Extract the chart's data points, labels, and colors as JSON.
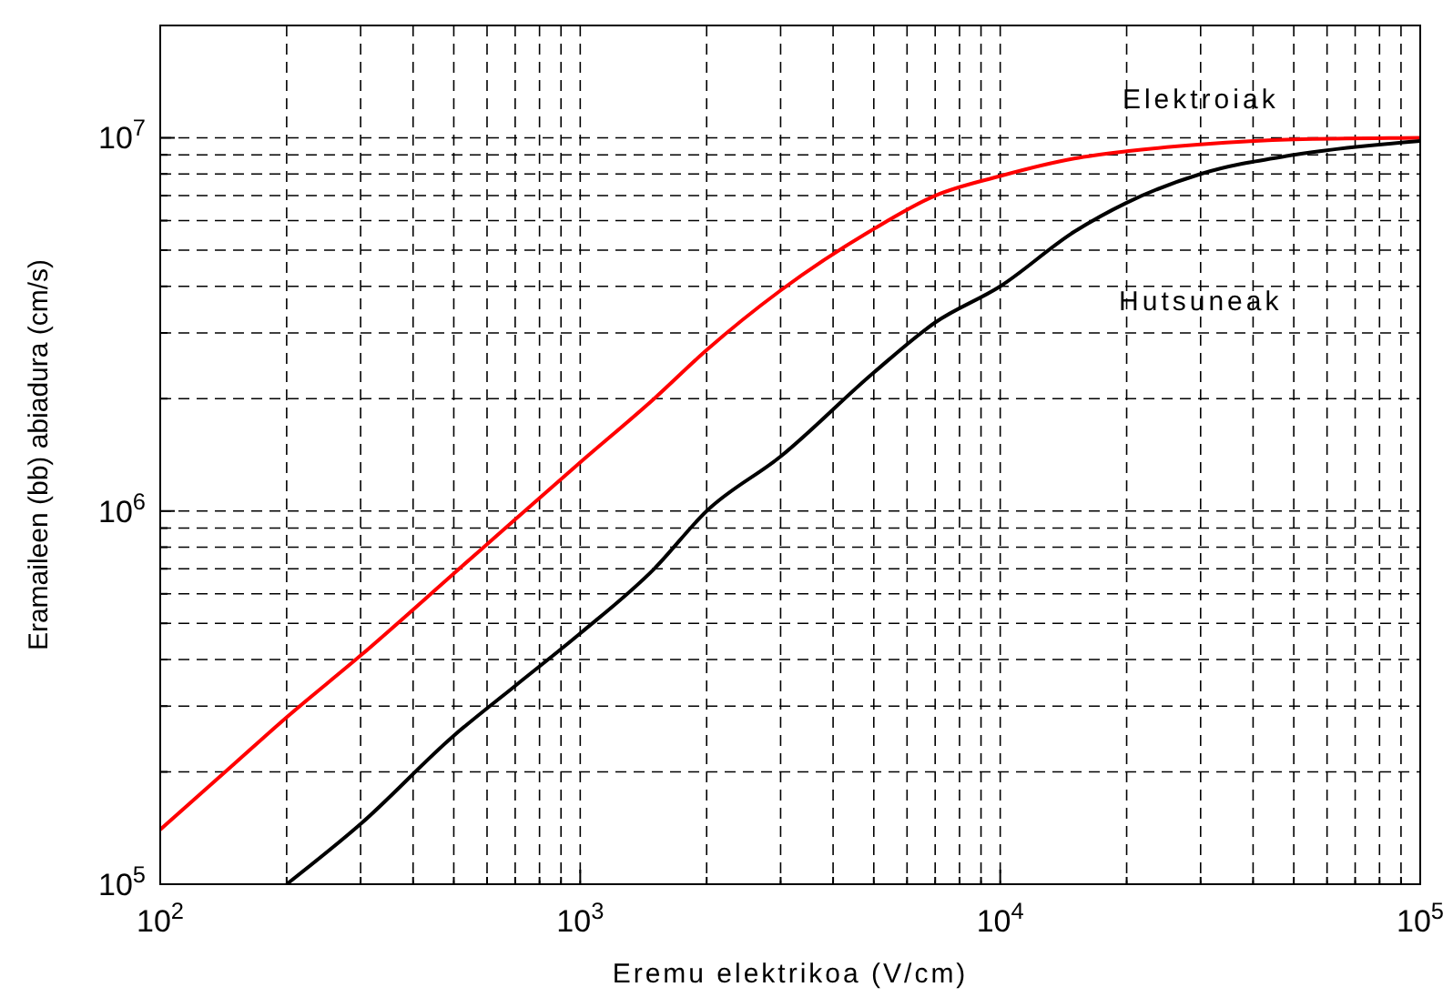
{
  "chart_data": {
    "type": "line",
    "xlabel": "Eremu elektrikoa (V/cm)",
    "ylabel": "Eramaileen (bb) abiadura (cm/s)",
    "log": "xy",
    "grid": true,
    "marker": "none",
    "xlim": [
      100,
      100000
    ],
    "ylim": [
      100000,
      20000000
    ],
    "xticks": [
      {
        "value": 100,
        "label": "10$^{2}$"
      },
      {
        "value": 200,
        "label": null
      },
      {
        "value": 300,
        "label": null
      },
      {
        "value": 400,
        "label": null
      },
      {
        "value": 500,
        "label": null
      },
      {
        "value": 600,
        "label": null
      },
      {
        "value": 700,
        "label": null
      },
      {
        "value": 800,
        "label": null
      },
      {
        "value": 900,
        "label": null
      },
      {
        "value": 1000,
        "label": "10$^{3}$"
      },
      {
        "value": 2000,
        "label": null
      },
      {
        "value": 3000,
        "label": null
      },
      {
        "value": 4000,
        "label": null
      },
      {
        "value": 5000,
        "label": null
      },
      {
        "value": 6000,
        "label": null
      },
      {
        "value": 7000,
        "label": null
      },
      {
        "value": 8000,
        "label": null
      },
      {
        "value": 9000,
        "label": null
      },
      {
        "value": 10000,
        "label": "10$^{4}$"
      },
      {
        "value": 20000,
        "label": null
      },
      {
        "value": 30000,
        "label": null
      },
      {
        "value": 40000,
        "label": null
      },
      {
        "value": 50000,
        "label": null
      },
      {
        "value": 60000,
        "label": null
      },
      {
        "value": 70000,
        "label": null
      },
      {
        "value": 80000,
        "label": null
      },
      {
        "value": 90000,
        "label": null
      },
      {
        "value": 100000,
        "label": "10$^{5}$"
      }
    ],
    "yticks": [
      {
        "value": 100000,
        "label": "10$^{5}$"
      },
      {
        "value": 200000,
        "label": null
      },
      {
        "value": 300000,
        "label": null
      },
      {
        "value": 400000,
        "label": null
      },
      {
        "value": 500000,
        "label": null
      },
      {
        "value": 600000,
        "label": null
      },
      {
        "value": 700000,
        "label": null
      },
      {
        "value": 800000,
        "label": null
      },
      {
        "value": 900000,
        "label": null
      },
      {
        "value": 1000000,
        "label": "10$^{6}$"
      },
      {
        "value": 2000000,
        "label": null
      },
      {
        "value": 3000000,
        "label": null
      },
      {
        "value": 4000000,
        "label": null
      },
      {
        "value": 5000000,
        "label": null
      },
      {
        "value": 6000000,
        "label": null
      },
      {
        "value": 7000000,
        "label": null
      },
      {
        "value": 8000000,
        "label": null
      },
      {
        "value": 9000000,
        "label": null
      },
      {
        "value": 10000000,
        "label": "10$^{7}$"
      }
    ],
    "series": [
      {
        "name": "Elektroiak",
        "color": "#ff0000",
        "x": [
          100,
          150,
          200,
          300,
          500,
          700,
          1000,
          1500,
          2000,
          3000,
          5000,
          7000,
          10000,
          15000,
          20000,
          30000,
          50000,
          100000
        ],
        "values": [
          140000,
          210000,
          280000,
          410000,
          680000,
          950000,
          1350000,
          2000000,
          2700000,
          3900000,
          5700000,
          7000000,
          7900000,
          8800000,
          9200000,
          9600000,
          9900000,
          10000000
        ]
      },
      {
        "name": "Hutsuneak",
        "color": "#000000",
        "x": [
          200,
          300,
          500,
          700,
          1000,
          1500,
          2000,
          3000,
          5000,
          7000,
          10000,
          15000,
          20000,
          30000,
          50000,
          100000
        ],
        "values": [
          100000,
          145000,
          250000,
          340000,
          470000,
          700000,
          1000000,
          1400000,
          2350000,
          3200000,
          4000000,
          5600000,
          6700000,
          8000000,
          9000000,
          9800000
        ]
      }
    ]
  }
}
